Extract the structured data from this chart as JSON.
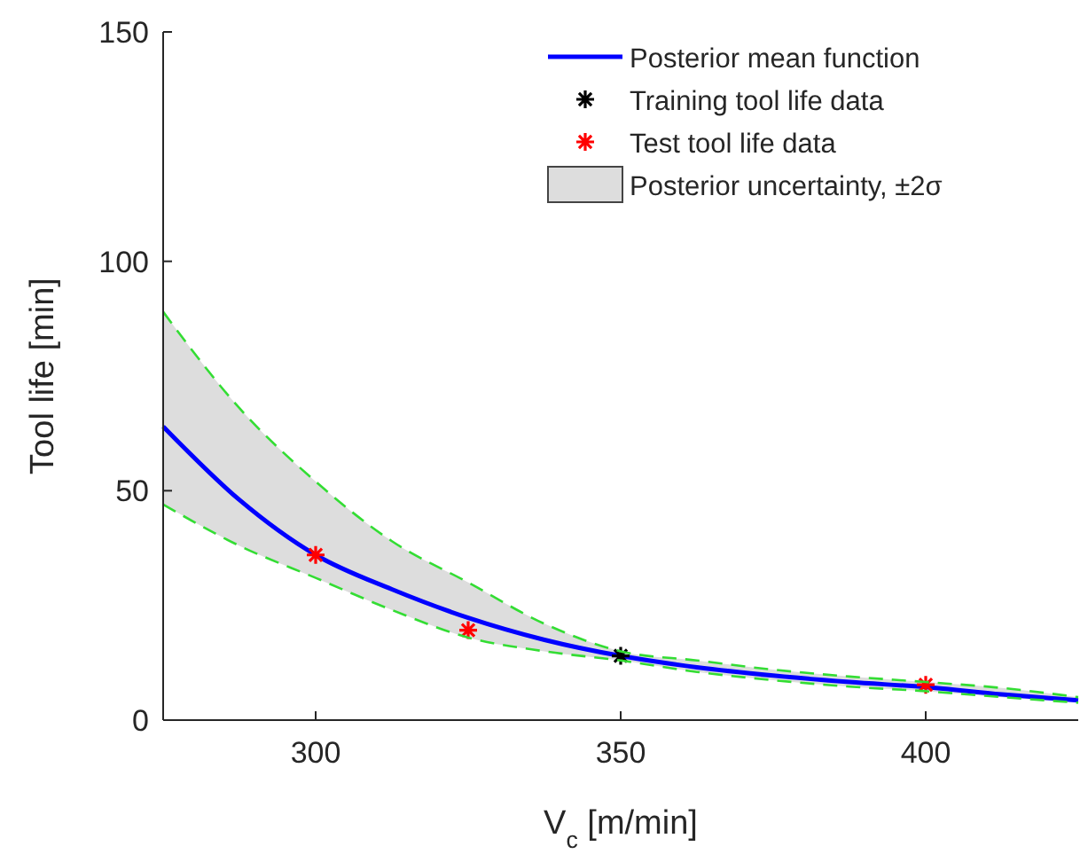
{
  "chart_data": {
    "type": "line",
    "xlabel": "V$_{c}$ [m/min]",
    "ylabel": "Tool life [min]",
    "xlim": [
      275,
      425
    ],
    "ylim": [
      0,
      150
    ],
    "xticks": [
      300,
      350,
      400
    ],
    "yticks": [
      0,
      50,
      100,
      150
    ],
    "grid": false,
    "legend": "top right",
    "annotations": [
      "Posterior uncertainty, ±2σ"
    ],
    "series": [
      {
        "name": "Posterior mean function",
        "color": "#0000ff",
        "line_style": "solid",
        "marker": "none",
        "x": [
          275,
          287.5,
          300,
          312.5,
          325,
          337.5,
          350,
          362.5,
          375,
          387.5,
          400,
          412.5,
          425
        ],
        "values": [
          64,
          48,
          36,
          28.5,
          22.3,
          17.5,
          14,
          11.5,
          9.7,
          8.3,
          7.2,
          5.6,
          4.3
        ],
        "lower": [
          47,
          38,
          31,
          24,
          18,
          15,
          13,
          10.5,
          8.7,
          7.3,
          6.3,
          5,
          3.8
        ],
        "upper": [
          89,
          68,
          52,
          39,
          30,
          21,
          15,
          13,
          11,
          9.5,
          8.3,
          7,
          5
        ]
      },
      {
        "type": "scatter",
        "name": "Training tool life data",
        "color": "#000000",
        "marker": "cross",
        "x": [
          350
        ],
        "values": [
          14
        ]
      },
      {
        "type": "scatter",
        "name": "Test tool life data",
        "color": "#ff0000",
        "marker": "cross",
        "x": [
          300,
          325,
          400
        ],
        "values": [
          36,
          19.6,
          7.7
        ]
      },
      {
        "color": "#33dd33",
        "line_style": "dashed",
        "marker": "none",
        "x": [
          275,
          287.5,
          300,
          312.5,
          325,
          337.5,
          350,
          362.5,
          375,
          387.5,
          400,
          412.5,
          425
        ],
        "values": [
          47,
          38,
          31,
          24,
          18,
          15,
          13,
          10.5,
          8.7,
          7.3,
          6.3,
          5,
          3.8
        ]
      },
      {
        "color": "#33dd33",
        "line_style": "dashed",
        "marker": "none",
        "x": [
          275,
          287.5,
          300,
          312.5,
          325,
          337.5,
          350,
          362.5,
          375,
          387.5,
          400,
          412.5,
          425
        ],
        "values": [
          89,
          68,
          52,
          39,
          30,
          21,
          15,
          13,
          11,
          9.5,
          8.3,
          7,
          5
        ]
      }
    ]
  }
}
